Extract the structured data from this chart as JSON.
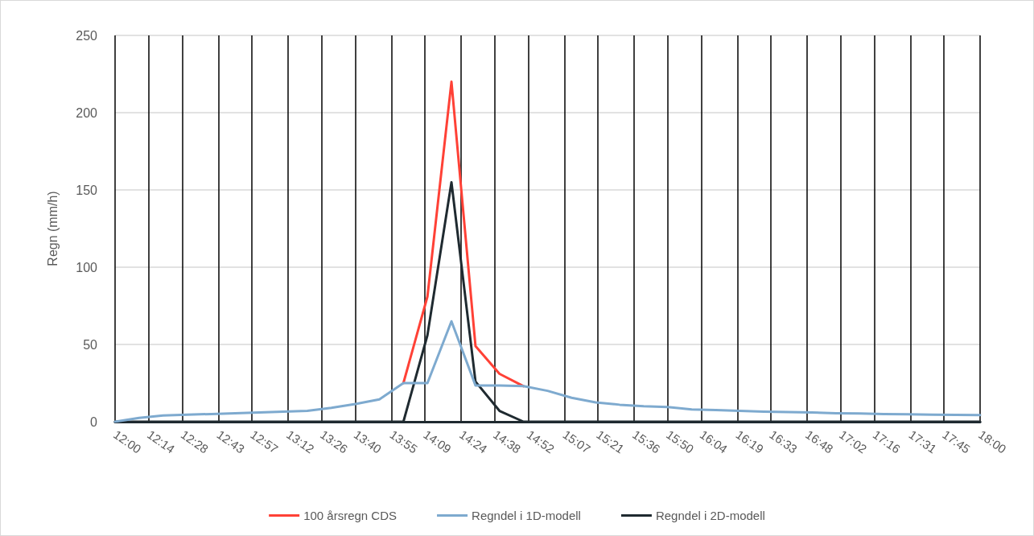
{
  "chart_data": {
    "type": "line",
    "ylabel": "Regn (mm/h)",
    "x": [
      12,
      12.1667,
      12.3333,
      12.5,
      12.6667,
      12.8333,
      13,
      13.1667,
      13.3333,
      13.5,
      13.6667,
      13.8333,
      14,
      14.1667,
      14.3333,
      14.5,
      14.6667,
      14.8333,
      15,
      15.1667,
      15.3333,
      15.5,
      15.6667,
      15.8333,
      16,
      16.1667,
      16.3333,
      16.5,
      16.6667,
      16.8333,
      17,
      17.1667,
      17.3333,
      17.5,
      17.6667,
      17.8333,
      18
    ],
    "series": [
      {
        "name": "100 årsregn CDS",
        "color": "#ff4136",
        "values": [
          null,
          null,
          null,
          null,
          null,
          null,
          null,
          null,
          null,
          null,
          null,
          null,
          25,
          81,
          220,
          49,
          31,
          23,
          null,
          null,
          null,
          null,
          null,
          null,
          null,
          null,
          null,
          null,
          null,
          null,
          null,
          null,
          null,
          null,
          null,
          null,
          null
        ]
      },
      {
        "name": "Regndel i 1D-modell",
        "color": "#7eaacf",
        "values": [
          0,
          2.5,
          4,
          4.5,
          5,
          5.5,
          6,
          6.5,
          7,
          9,
          11.5,
          14.5,
          25,
          25,
          65,
          23.5,
          23.5,
          23,
          20,
          15.5,
          12.5,
          11,
          10,
          9.5,
          8,
          7.5,
          7,
          6.5,
          6.2,
          6,
          5.5,
          5.3,
          5,
          4.8,
          4.6,
          4.4,
          4.3
        ]
      },
      {
        "name": "Regndel i 2D-modell",
        "color": "#1f2a30",
        "values": [
          0,
          0,
          0,
          0,
          0,
          0,
          0,
          0,
          0,
          0,
          0,
          0,
          0,
          56,
          155,
          26,
          7,
          0,
          0,
          0,
          0,
          0,
          0,
          0,
          0,
          0,
          0,
          0,
          0,
          0,
          0,
          0,
          0,
          0,
          0,
          0,
          0
        ]
      }
    ],
    "xlim": [
      12,
      18
    ],
    "xticks": [
      {
        "value": 12,
        "label": "12:00"
      },
      {
        "value": 12.2333,
        "label": "12:14"
      },
      {
        "value": 12.4667,
        "label": "12:28"
      },
      {
        "value": 12.7167,
        "label": "12:43"
      },
      {
        "value": 12.95,
        "label": "12:57"
      },
      {
        "value": 13.2,
        "label": "13:12"
      },
      {
        "value": 13.4333,
        "label": "13:26"
      },
      {
        "value": 13.6667,
        "label": "13:40"
      },
      {
        "value": 13.9167,
        "label": "13:55"
      },
      {
        "value": 14.15,
        "label": "14:09"
      },
      {
        "value": 14.4,
        "label": "14:24"
      },
      {
        "value": 14.6333,
        "label": "14:38"
      },
      {
        "value": 14.8667,
        "label": "14:52"
      },
      {
        "value": 15.1167,
        "label": "15:07"
      },
      {
        "value": 15.35,
        "label": "15:21"
      },
      {
        "value": 15.6,
        "label": "15:36"
      },
      {
        "value": 15.8333,
        "label": "15:50"
      },
      {
        "value": 16.0667,
        "label": "16:04"
      },
      {
        "value": 16.3167,
        "label": "16:19"
      },
      {
        "value": 16.55,
        "label": "16:33"
      },
      {
        "value": 16.8,
        "label": "16:48"
      },
      {
        "value": 17.0333,
        "label": "17:02"
      },
      {
        "value": 17.2667,
        "label": "17:16"
      },
      {
        "value": 17.5167,
        "label": "17:31"
      },
      {
        "value": 17.75,
        "label": "17:45"
      },
      {
        "value": 18,
        "label": "18:00"
      }
    ],
    "ylim": [
      0,
      250
    ],
    "yticks": [
      0,
      50,
      100,
      150,
      200,
      250
    ],
    "grid": true,
    "legend": "bottom",
    "marker": "none",
    "line_style": "solid"
  }
}
